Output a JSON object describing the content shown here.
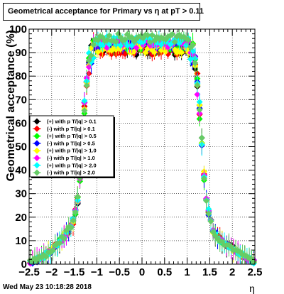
{
  "title": "Geometrical acceptance for Primary vs   η at pT > 0.11",
  "footer": "Wed May 23 10:18:28 2018",
  "chart_data": {
    "type": "scatter",
    "xlabel": "η",
    "ylabel": "Geometrical acceptance (%)",
    "xlim": [
      -2.5,
      2.5
    ],
    "ylim": [
      0,
      100
    ],
    "x_ticks": [
      "−2.5",
      "−2",
      "−1.5",
      "−1",
      "−0.5",
      "0",
      "0.5",
      "1",
      "1.5",
      "2",
      "2.5"
    ],
    "y_ticks": [
      "0",
      "10",
      "20",
      "30",
      "40",
      "50",
      "60",
      "70",
      "80",
      "90",
      "100"
    ],
    "grid": true,
    "legend_position": "left-middle",
    "series": [
      {
        "name": "(+) with p T/|q| > 0.1",
        "color": "#000000",
        "plateau": 91
      },
      {
        "name": "(-) with p T/|q| > 0.1",
        "color": "#ff0000",
        "plateau": 91
      },
      {
        "name": "(+) with p T/|q| > 0.5",
        "color": "#00ff00",
        "plateau": 93
      },
      {
        "name": "(-) with p T/|q| > 0.5",
        "color": "#0000ff",
        "plateau": 93
      },
      {
        "name": "(+) with p T/|q| > 1.0",
        "color": "#ffff00",
        "plateau": 92
      },
      {
        "name": "(-) with p T/|q| > 1.0",
        "color": "#ff00ff",
        "plateau": 94
      },
      {
        "name": "(+) with p T/|q| > 2.0",
        "color": "#00ffff",
        "plateau": 95
      },
      {
        "name": "(-) with p T/|q| > 2.0",
        "color": "#66cc66",
        "plateau": 96
      }
    ],
    "acceptance_shape": {
      "eta": [
        -2.45,
        -2.2,
        -2.0,
        -1.8,
        -1.6,
        -1.5,
        -1.4,
        -1.35,
        -1.3,
        -1.25,
        -1.2,
        -1.15,
        -1.1,
        -1.0,
        0.0,
        1.0,
        1.1,
        1.15,
        1.2,
        1.25,
        1.3,
        1.35,
        1.4,
        1.5,
        1.6,
        1.8,
        2.0,
        2.2,
        2.45
      ],
      "acceptance": [
        1,
        3,
        6,
        10,
        15,
        20,
        30,
        45,
        60,
        72,
        82,
        88,
        91,
        92,
        92,
        92,
        91,
        88,
        82,
        72,
        60,
        45,
        30,
        20,
        13,
        9,
        7,
        4,
        1
      ]
    }
  }
}
